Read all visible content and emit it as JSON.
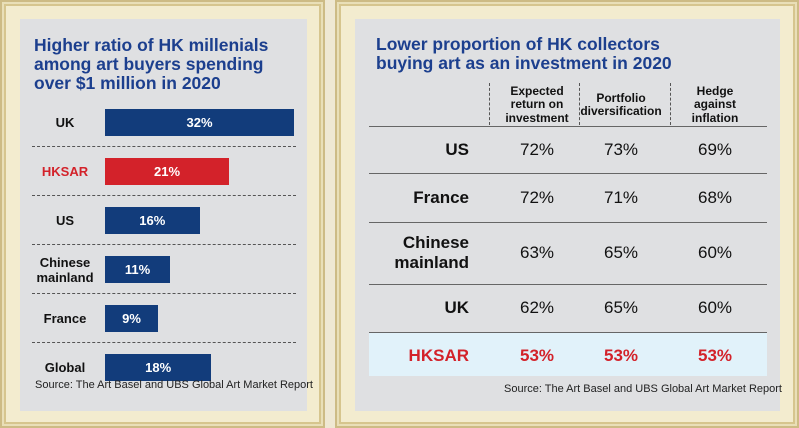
{
  "left_chart": {
    "title_lines": [
      "Higher ratio of HK millenials",
      "among art buyers spending",
      "over $1 million in 2020"
    ],
    "source": "Source: The Art Basel and UBS Global Art Market Report",
    "colors": {
      "bar": "#123c7b",
      "highlight": "#d3222a"
    }
  },
  "right_table": {
    "title_lines": [
      "Lower proportion of HK collectors",
      "buying art as an investment in 2020"
    ],
    "columns": [
      [
        "Expected",
        "return on",
        "investment"
      ],
      [
        "Portfolio",
        "diversification"
      ],
      [
        "Hedge",
        "against",
        "inflation"
      ]
    ],
    "rows": [
      {
        "label": [
          "US"
        ],
        "values": [
          "72%",
          "73%",
          "69%"
        ]
      },
      {
        "label": [
          "France"
        ],
        "values": [
          "72%",
          "71%",
          "68%"
        ]
      },
      {
        "label": [
          "Chinese",
          "mainland"
        ],
        "values": [
          "63%",
          "65%",
          "60%"
        ]
      },
      {
        "label": [
          "UK"
        ],
        "values": [
          "62%",
          "65%",
          "60%"
        ]
      },
      {
        "label": [
          "HKSAR"
        ],
        "values": [
          "53%",
          "53%",
          "53%"
        ],
        "highlight": true
      }
    ],
    "source": "Source: The Art Basel and UBS Global Art Market Report",
    "colors": {
      "highlight_text": "#d3222a",
      "highlight_row": "#e1f2fa"
    }
  },
  "chart_data": [
    {
      "type": "bar",
      "orientation": "horizontal",
      "title": "Higher ratio of HK millenials among art buyers spending over $1 million in 2020",
      "categories": [
        "UK",
        "HKSAR",
        "US",
        "Chinese mainland",
        "France",
        "Global"
      ],
      "category_lines": [
        [
          "UK"
        ],
        [
          "HKSAR"
        ],
        [
          "US"
        ],
        [
          "Chinese",
          "mainland"
        ],
        [
          "France"
        ],
        [
          "Global"
        ]
      ],
      "values": [
        32,
        21,
        16,
        11,
        9,
        18
      ],
      "labels": [
        "32%",
        "21%",
        "16%",
        "11%",
        "9%",
        "18%"
      ],
      "highlight": "HKSAR",
      "unit": "%",
      "xlim": [
        0,
        32
      ]
    },
    {
      "type": "table",
      "title": "Lower proportion of HK collectors buying art as an investment in 2020",
      "columns": [
        "Expected return on investment",
        "Portfolio diversification",
        "Hedge against inflation"
      ],
      "rows": [
        "US",
        "France",
        "Chinese mainland",
        "UK",
        "HKSAR"
      ],
      "values": [
        [
          72,
          73,
          69
        ],
        [
          72,
          71,
          68
        ],
        [
          63,
          65,
          60
        ],
        [
          62,
          65,
          60
        ],
        [
          53,
          53,
          53
        ]
      ],
      "unit": "%",
      "highlight": "HKSAR"
    }
  ]
}
